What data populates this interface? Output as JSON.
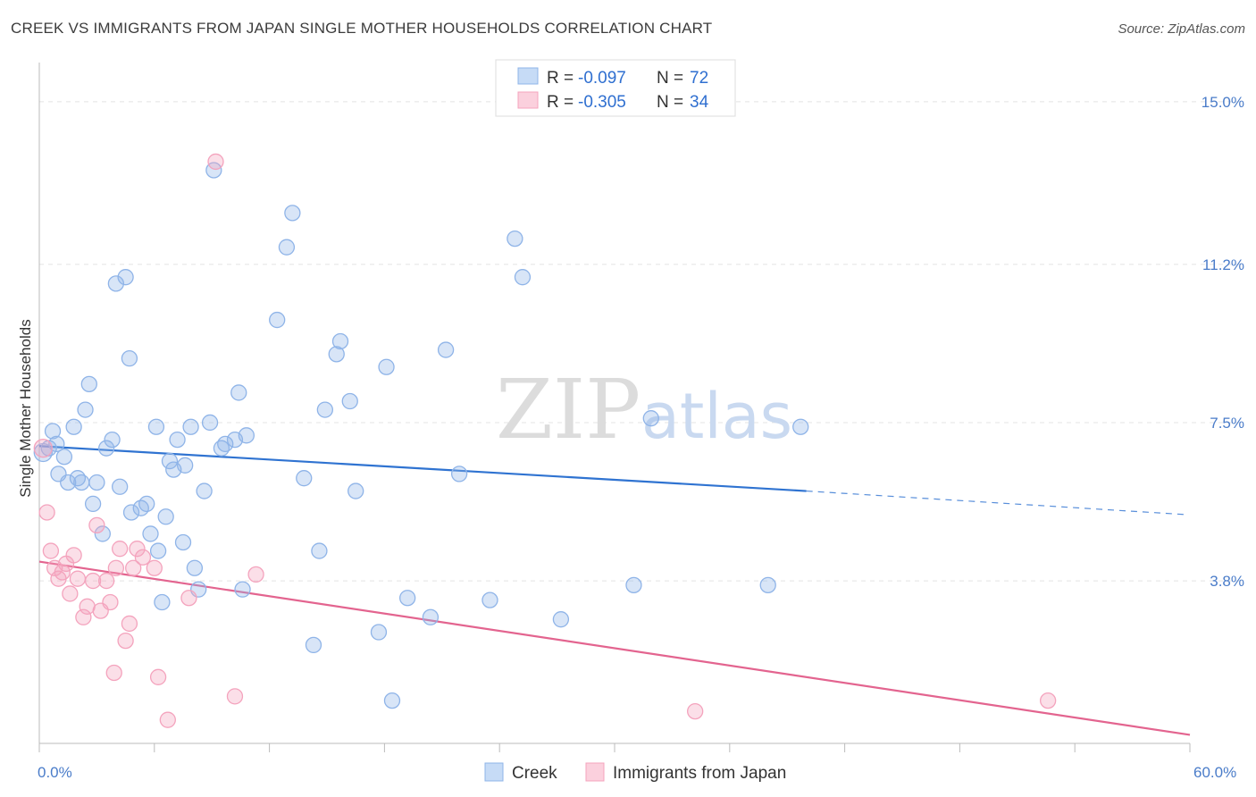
{
  "title": "CREEK VS IMMIGRANTS FROM JAPAN SINGLE MOTHER HOUSEHOLDS CORRELATION CHART",
  "source": "Source: ZipAtlas.com",
  "watermark": {
    "zip": "ZIP",
    "atlas": "atlas"
  },
  "legend_box": [
    {
      "r_label": "R =",
      "r_value": "-0.097",
      "n_label": "N =",
      "n_value": "72"
    },
    {
      "r_label": "R =",
      "r_value": "-0.305",
      "n_label": "N =",
      "n_value": "34"
    }
  ],
  "chart_data": {
    "type": "scatter",
    "title": "CREEK VS IMMIGRANTS FROM JAPAN SINGLE MOTHER HOUSEHOLDS CORRELATION CHART",
    "xlabel": "",
    "ylabel": "Single Mother Households",
    "xlim": [
      0,
      60
    ],
    "ylim": [
      0,
      15.75
    ],
    "x_tick_labels": [
      "0.0%",
      "60.0%"
    ],
    "y_ticks": [
      3.8,
      7.5,
      11.2,
      15.0
    ],
    "y_tick_labels": [
      "3.8%",
      "7.5%",
      "11.2%",
      "15.0%"
    ],
    "grid": true,
    "legend_position": "bottom",
    "series": [
      {
        "name": "Creek",
        "color": "#8fb4e8",
        "trend_color": "#2f73d1",
        "trend": {
          "x0": 0,
          "y0": 6.95,
          "x1": 40,
          "y1": 5.9,
          "dash_to_x": 60,
          "dash_to_y": 5.35
        },
        "points": [
          [
            0.2,
            6.8
          ],
          [
            0.5,
            6.9
          ],
          [
            0.7,
            7.3
          ],
          [
            0.9,
            7.0
          ],
          [
            1.0,
            6.3
          ],
          [
            1.3,
            6.7
          ],
          [
            1.5,
            6.1
          ],
          [
            1.8,
            7.4
          ],
          [
            2.0,
            6.2
          ],
          [
            2.2,
            6.1
          ],
          [
            2.4,
            7.8
          ],
          [
            2.6,
            8.4
          ],
          [
            2.8,
            5.6
          ],
          [
            3.0,
            6.1
          ],
          [
            3.3,
            4.9
          ],
          [
            3.5,
            6.9
          ],
          [
            3.8,
            7.1
          ],
          [
            4.0,
            10.75
          ],
          [
            4.2,
            6.0
          ],
          [
            4.5,
            10.9
          ],
          [
            4.7,
            9.0
          ],
          [
            4.8,
            5.4
          ],
          [
            5.3,
            5.5
          ],
          [
            5.6,
            5.6
          ],
          [
            5.8,
            4.9
          ],
          [
            6.1,
            7.4
          ],
          [
            6.2,
            4.5
          ],
          [
            6.4,
            3.3
          ],
          [
            6.6,
            5.3
          ],
          [
            6.8,
            6.6
          ],
          [
            7.0,
            6.4
          ],
          [
            7.2,
            7.1
          ],
          [
            7.5,
            4.7
          ],
          [
            7.6,
            6.5
          ],
          [
            7.9,
            7.4
          ],
          [
            8.1,
            4.1
          ],
          [
            8.3,
            3.6
          ],
          [
            8.6,
            5.9
          ],
          [
            8.9,
            7.5
          ],
          [
            9.1,
            13.4
          ],
          [
            9.5,
            6.9
          ],
          [
            9.7,
            7.0
          ],
          [
            10.2,
            7.1
          ],
          [
            10.4,
            8.2
          ],
          [
            10.6,
            3.6
          ],
          [
            10.8,
            7.2
          ],
          [
            12.4,
            9.9
          ],
          [
            12.9,
            11.6
          ],
          [
            13.2,
            12.4
          ],
          [
            13.8,
            6.2
          ],
          [
            14.3,
            2.3
          ],
          [
            14.6,
            4.5
          ],
          [
            14.9,
            7.8
          ],
          [
            15.5,
            9.1
          ],
          [
            15.7,
            9.4
          ],
          [
            16.2,
            8.0
          ],
          [
            16.5,
            5.9
          ],
          [
            17.7,
            2.6
          ],
          [
            18.1,
            8.8
          ],
          [
            18.4,
            1.0
          ],
          [
            19.2,
            3.4
          ],
          [
            20.4,
            2.95
          ],
          [
            21.2,
            9.2
          ],
          [
            21.9,
            6.3
          ],
          [
            23.5,
            3.35
          ],
          [
            24.8,
            11.8
          ],
          [
            25.2,
            10.9
          ],
          [
            27.2,
            2.9
          ],
          [
            31.0,
            3.7
          ],
          [
            31.9,
            7.6
          ],
          [
            38.0,
            3.7
          ],
          [
            39.7,
            7.4
          ]
        ]
      },
      {
        "name": "Immigrants from Japan",
        "color": "#f4a3bd",
        "trend_color": "#e3648f",
        "trend": {
          "x0": 0,
          "y0": 4.25,
          "x1": 60,
          "y1": 0.2
        },
        "points": [
          [
            0.2,
            6.9
          ],
          [
            0.4,
            5.4
          ],
          [
            0.6,
            4.5
          ],
          [
            0.8,
            4.1
          ],
          [
            1.0,
            3.85
          ],
          [
            1.2,
            4.0
          ],
          [
            1.4,
            4.2
          ],
          [
            1.6,
            3.5
          ],
          [
            1.8,
            4.4
          ],
          [
            2.0,
            3.85
          ],
          [
            2.3,
            2.95
          ],
          [
            2.5,
            3.2
          ],
          [
            2.8,
            3.8
          ],
          [
            3.0,
            5.1
          ],
          [
            3.2,
            3.1
          ],
          [
            3.5,
            3.8
          ],
          [
            3.7,
            3.3
          ],
          [
            3.9,
            1.65
          ],
          [
            4.0,
            4.1
          ],
          [
            4.2,
            4.55
          ],
          [
            4.5,
            2.4
          ],
          [
            4.7,
            2.8
          ],
          [
            4.9,
            4.1
          ],
          [
            5.1,
            4.55
          ],
          [
            5.4,
            4.35
          ],
          [
            6.0,
            4.1
          ],
          [
            6.2,
            1.55
          ],
          [
            6.7,
            0.55
          ],
          [
            7.8,
            3.4
          ],
          [
            9.2,
            13.6
          ],
          [
            10.2,
            1.1
          ],
          [
            11.3,
            3.95
          ],
          [
            34.2,
            0.75
          ],
          [
            52.6,
            1.0
          ]
        ]
      }
    ]
  },
  "bottom_legend": [
    {
      "label": "Creek",
      "color": "#8fb4e8"
    },
    {
      "label": "Immigrants from Japan",
      "color": "#f4a3bd"
    }
  ]
}
